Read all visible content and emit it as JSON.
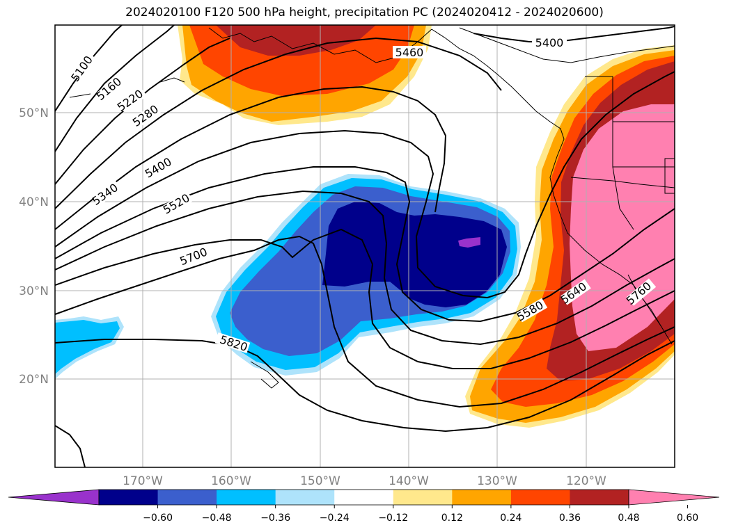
{
  "title": "2024020100 F120 500 hPa height, precipitation PC (2024020412 - 2024020600)",
  "map": {
    "lat_labels": [
      "50°N",
      "40°N",
      "30°N",
      "20°N"
    ],
    "lon_labels": [
      "170°W",
      "160°W",
      "150°W",
      "140°W",
      "130°W",
      "120°W"
    ],
    "contour_labels": [
      "5100",
      "5160",
      "5220",
      "5280",
      "5340",
      "5400",
      "5460",
      "5520",
      "5580",
      "5640",
      "5700",
      "5760",
      "5820",
      "5400"
    ],
    "field_variable": "precipitation PC",
    "contour_variable": "500 hPa height",
    "gridlines": true
  },
  "colorbar": {
    "ticks": [
      "−0.60",
      "−0.48",
      "−0.36",
      "−0.24",
      "−0.12",
      "0.12",
      "0.24",
      "0.36",
      "0.48",
      "0.60"
    ],
    "colors": [
      "#9932cc",
      "#00008b",
      "#3b5fcd",
      "#00bfff",
      "#aee3fb",
      "#ffffff",
      "#ffe88c",
      "#ffa500",
      "#ff4500",
      "#b22222",
      "#ff80b0"
    ],
    "extend": "both"
  }
}
